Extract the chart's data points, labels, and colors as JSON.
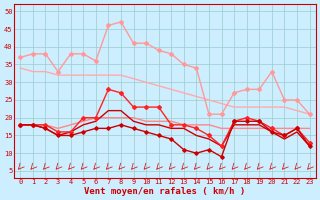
{
  "x": [
    0,
    1,
    2,
    3,
    4,
    5,
    6,
    7,
    8,
    9,
    10,
    11,
    12,
    13,
    14,
    15,
    16,
    17,
    18,
    19,
    20,
    21,
    22,
    23
  ],
  "line_rafales": [
    37,
    38,
    38,
    33,
    38,
    38,
    36,
    46,
    47,
    41,
    41,
    39,
    38,
    35,
    34,
    21,
    21,
    27,
    28,
    28,
    33,
    25,
    25,
    21
  ],
  "line_moy_top": [
    18,
    18,
    18,
    17,
    18,
    19,
    20,
    20,
    20,
    20,
    19,
    19,
    19,
    18,
    18,
    18,
    17,
    17,
    17,
    17,
    17,
    17,
    17,
    17
  ],
  "line_red1": [
    18,
    18,
    18,
    16,
    16,
    20,
    20,
    28,
    27,
    23,
    23,
    23,
    18,
    18,
    17,
    15,
    12,
    19,
    20,
    19,
    17,
    15,
    17,
    13
  ],
  "line_red2": [
    18,
    18,
    17,
    15,
    16,
    18,
    19,
    22,
    22,
    19,
    18,
    18,
    17,
    17,
    15,
    14,
    12,
    18,
    18,
    18,
    16,
    14,
    16,
    12
  ],
  "line_red3": [
    18,
    18,
    17,
    15,
    15,
    16,
    17,
    17,
    18,
    17,
    16,
    15,
    14,
    11,
    10,
    11,
    9,
    19,
    19,
    19,
    16,
    15,
    17,
    12
  ],
  "line_pink_flat": [
    34,
    33,
    33,
    32,
    32,
    32,
    32,
    32,
    32,
    31,
    30,
    29,
    28,
    27,
    26,
    25,
    24,
    23,
    23,
    23,
    23,
    23,
    22,
    21
  ],
  "color_rafales": "#ff9999",
  "color_pink_flat": "#ffaaaa",
  "color_moy_top": "#ff8888",
  "color_red1": "#ff2222",
  "color_red2": "#cc0000",
  "color_red3": "#cc0000",
  "bg_color": "#cceeff",
  "grid_color": "#99cccc",
  "xlabel": "Vent moyen/en rafales ( km/h )",
  "yticks": [
    5,
    10,
    15,
    20,
    25,
    30,
    35,
    40,
    45,
    50
  ],
  "ylim": [
    3,
    52
  ],
  "xlim": [
    -0.5,
    23.5
  ]
}
